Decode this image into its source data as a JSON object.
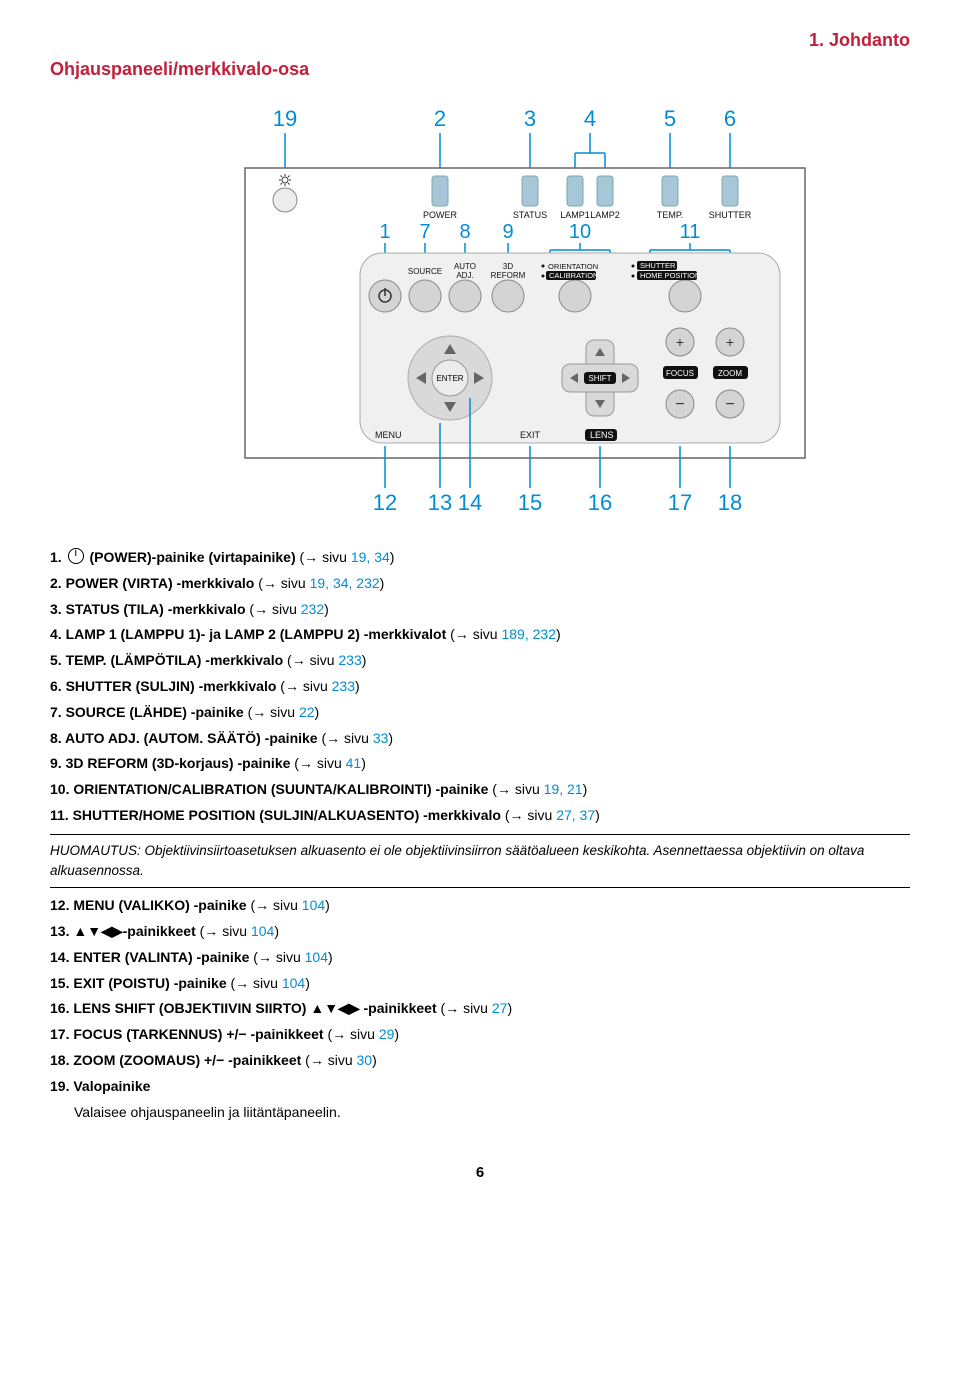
{
  "header": {
    "chapter": "1. Johdanto"
  },
  "section_title": "Ohjauspaneeli/merkkivalo-osa",
  "diagram": {
    "top_callouts": [
      "19",
      "2",
      "3",
      "4",
      "5",
      "6"
    ],
    "bottom_callouts": [
      "12",
      "13",
      "14",
      "15",
      "16",
      "17",
      "18"
    ],
    "mid_callouts": [
      "1",
      "7",
      "8",
      "9",
      "10",
      "11"
    ],
    "led_labels": [
      "POWER",
      "STATUS",
      "LAMP1",
      "LAMP2",
      "TEMP.",
      "SHUTTER"
    ],
    "btn_labels": {
      "source": "SOURCE",
      "auto_adj": "AUTO\nADJ.",
      "reform": "3D\nREFORM"
    },
    "mid_right": {
      "orientation": "ORIENTATION",
      "calibration": "CALIBRATION",
      "shutter": "SHUTTER",
      "home": "HOME POSITION"
    },
    "lower": {
      "enter": "ENTER",
      "shift": "SHIFT",
      "focus": "FOCUS",
      "zoom": "ZOOM",
      "menu": "MENU",
      "exit": "EXIT",
      "lens": "LENS"
    },
    "callout_color": "#008dd4",
    "panel_bg": "#f0f0f0",
    "led_color": "#a7c7d8",
    "btn_color": "#d4d4d4"
  },
  "legend": [
    {
      "n": "1.",
      "icon": "power",
      "name": "(POWER)-painike (virtapainike)",
      "rest": " (→ sivu ",
      "pages": "19, 34",
      "close": ")"
    },
    {
      "n": "2.",
      "name": "POWER (VIRTA) -merkkivalo",
      "rest": " (→ sivu ",
      "pages": "19, 34, 232",
      "close": ")"
    },
    {
      "n": "3.",
      "name": "STATUS (TILA) -merkkivalo",
      "rest": " (→ sivu ",
      "pages": "232",
      "close": ")"
    },
    {
      "n": "4.",
      "name": "LAMP 1 (LAMPPU 1)- ja LAMP 2 (LAMPPU 2) -merkkivalot",
      "rest": " (→ sivu ",
      "pages": "189, 232",
      "close": ")"
    },
    {
      "n": "5.",
      "name": "TEMP. (LÄMPÖTILA) -merkkivalo",
      "rest": " (→ sivu ",
      "pages": "233",
      "close": ")"
    },
    {
      "n": "6.",
      "name": "SHUTTER (SULJIN) -merkkivalo",
      "rest": " (→ sivu ",
      "pages": "233",
      "close": ")"
    },
    {
      "n": "7.",
      "name": "SOURCE (LÄHDE) -painike",
      "rest": " (→ sivu ",
      "pages": "22",
      "close": ")"
    },
    {
      "n": "8.",
      "name": "AUTO ADJ. (AUTOM. SÄÄTÖ) -painike",
      "rest": " (→ sivu ",
      "pages": "33",
      "close": ")"
    },
    {
      "n": "9.",
      "name": "3D REFORM (3D-korjaus) -painike",
      "rest": " (→ sivu ",
      "pages": "41",
      "close": ")"
    },
    {
      "n": "10.",
      "name": "ORIENTATION/CALIBRATION (SUUNTA/KALIBROINTI) -painike",
      "rest": " (→ sivu ",
      "pages": "19, 21",
      "close": ")"
    },
    {
      "n": "11.",
      "name": "SHUTTER/HOME POSITION (SULJIN/ALKUASENTO) -merkkivalo",
      "rest": " (→ sivu ",
      "pages": "27, 37",
      "close": ")"
    }
  ],
  "note": "HUOMAUTUS: Objektiivinsiirtoasetuksen alkuasento ei ole objektiivinsiirron säätöalueen keskikohta. Asennettaessa objektiivin on oltava alkuasennossa.",
  "legend2": [
    {
      "n": "12.",
      "name": "MENU (VALIKKO) -painike",
      "rest": " (→ sivu ",
      "pages": "104",
      "close": ")"
    },
    {
      "n": "13.",
      "name": "▲▼◀▶-painikkeet",
      "rest": " (→ sivu ",
      "pages": "104",
      "close": ")"
    },
    {
      "n": "14.",
      "name": "ENTER (VALINTA) -painike",
      "rest": " (→ sivu ",
      "pages": "104",
      "close": ")"
    },
    {
      "n": "15.",
      "name": "EXIT (POISTU) -painike",
      "rest": " (→ sivu ",
      "pages": "104",
      "close": ")"
    },
    {
      "n": "16.",
      "name": "LENS SHIFT (OBJEKTIIVIN SIIRTO) ▲▼◀▶ -painikkeet",
      "rest": " (→ sivu ",
      "pages": "27",
      "close": ")"
    },
    {
      "n": "17.",
      "name": "FOCUS (TARKENNUS) +/− -painikkeet",
      "rest": " (→ sivu ",
      "pages": "29",
      "close": ")"
    },
    {
      "n": "18.",
      "name": "ZOOM (ZOOMAUS) +/− -painikkeet",
      "rest": " (→ sivu ",
      "pages": "30",
      "close": ")"
    },
    {
      "n": "19.",
      "name": "Valopainike",
      "rest": "",
      "pages": "",
      "close": ""
    }
  ],
  "sub_text": "Valaisee ohjauspaneelin ja liitäntäpaneelin.",
  "page_number": "6"
}
